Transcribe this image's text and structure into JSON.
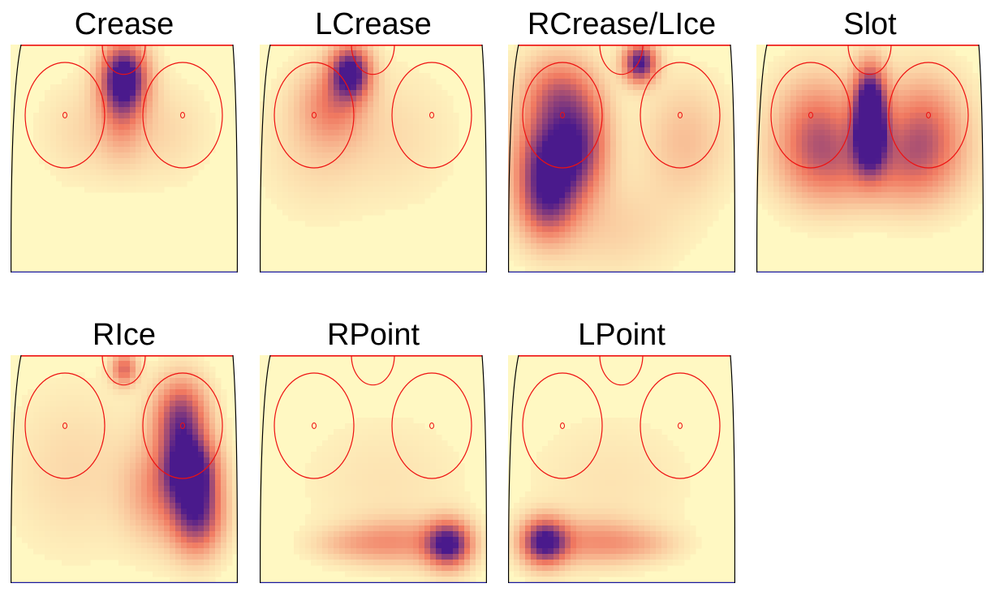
{
  "chart_data": {
    "type": "heatmap",
    "title": "",
    "xlabel": "",
    "ylabel": "",
    "colors": {
      "low": "#fff8c2",
      "mid": "#f07860",
      "high": "#4a1a8c",
      "rink_lines": "#ee1111",
      "boards": "#000000",
      "blue_line": "#1a1aa0",
      "goal_line": "#ee1111"
    },
    "panels": [
      {
        "title": "Crease",
        "hotspots": [
          {
            "x": 0.5,
            "y": 0.14,
            "sx": 0.07,
            "sy": 0.1,
            "intensity": 1.0
          },
          {
            "x": 0.49,
            "y": 0.28,
            "sx": 0.07,
            "sy": 0.14,
            "intensity": 0.35
          },
          {
            "x": 0.33,
            "y": 0.38,
            "sx": 0.14,
            "sy": 0.15,
            "intensity": 0.12
          },
          {
            "x": 0.67,
            "y": 0.38,
            "sx": 0.14,
            "sy": 0.15,
            "intensity": 0.12
          }
        ]
      },
      {
        "title": "LCrease",
        "hotspots": [
          {
            "x": 0.4,
            "y": 0.12,
            "sx": 0.06,
            "sy": 0.08,
            "intensity": 1.0
          },
          {
            "x": 0.32,
            "y": 0.26,
            "sx": 0.1,
            "sy": 0.12,
            "intensity": 0.4
          },
          {
            "x": 0.24,
            "y": 0.45,
            "sx": 0.16,
            "sy": 0.2,
            "intensity": 0.12
          },
          {
            "x": 0.6,
            "y": 0.4,
            "sx": 0.18,
            "sy": 0.2,
            "intensity": 0.1
          }
        ]
      },
      {
        "title": "RCrease/LIce",
        "hotspots": [
          {
            "x": 0.58,
            "y": 0.08,
            "sx": 0.05,
            "sy": 0.06,
            "intensity": 1.0
          },
          {
            "x": 0.2,
            "y": 0.5,
            "sx": 0.11,
            "sy": 0.14,
            "intensity": 0.95
          },
          {
            "x": 0.22,
            "y": 0.22,
            "sx": 0.11,
            "sy": 0.12,
            "intensity": 0.55
          },
          {
            "x": 0.17,
            "y": 0.7,
            "sx": 0.09,
            "sy": 0.12,
            "intensity": 0.6
          },
          {
            "x": 0.34,
            "y": 0.42,
            "sx": 0.08,
            "sy": 0.15,
            "intensity": 0.45
          },
          {
            "x": 0.78,
            "y": 0.42,
            "sx": 0.13,
            "sy": 0.18,
            "intensity": 0.22
          },
          {
            "x": 0.45,
            "y": 0.8,
            "sx": 0.2,
            "sy": 0.15,
            "intensity": 0.15
          }
        ]
      },
      {
        "title": "Slot",
        "hotspots": [
          {
            "x": 0.5,
            "y": 0.24,
            "sx": 0.05,
            "sy": 0.11,
            "intensity": 1.0
          },
          {
            "x": 0.5,
            "y": 0.42,
            "sx": 0.05,
            "sy": 0.1,
            "intensity": 0.9
          },
          {
            "x": 0.27,
            "y": 0.4,
            "sx": 0.13,
            "sy": 0.17,
            "intensity": 0.6
          },
          {
            "x": 0.73,
            "y": 0.4,
            "sx": 0.13,
            "sy": 0.17,
            "intensity": 0.6
          },
          {
            "x": 0.5,
            "y": 0.55,
            "sx": 0.22,
            "sy": 0.12,
            "intensity": 0.3
          }
        ]
      },
      {
        "title": "RIce",
        "hotspots": [
          {
            "x": 0.79,
            "y": 0.5,
            "sx": 0.08,
            "sy": 0.1,
            "intensity": 1.0
          },
          {
            "x": 0.75,
            "y": 0.28,
            "sx": 0.08,
            "sy": 0.12,
            "intensity": 0.8
          },
          {
            "x": 0.82,
            "y": 0.7,
            "sx": 0.08,
            "sy": 0.12,
            "intensity": 0.85
          },
          {
            "x": 0.5,
            "y": 0.06,
            "sx": 0.04,
            "sy": 0.05,
            "intensity": 0.55
          },
          {
            "x": 0.64,
            "y": 0.6,
            "sx": 0.1,
            "sy": 0.15,
            "intensity": 0.35
          },
          {
            "x": 0.28,
            "y": 0.5,
            "sx": 0.2,
            "sy": 0.25,
            "intensity": 0.12
          }
        ]
      },
      {
        "title": "RPoint",
        "hotspots": [
          {
            "x": 0.83,
            "y": 0.83,
            "sx": 0.07,
            "sy": 0.07,
            "intensity": 1.0
          },
          {
            "x": 0.6,
            "y": 0.82,
            "sx": 0.15,
            "sy": 0.07,
            "intensity": 0.35
          },
          {
            "x": 0.38,
            "y": 0.83,
            "sx": 0.12,
            "sy": 0.05,
            "intensity": 0.15
          },
          {
            "x": 0.55,
            "y": 0.55,
            "sx": 0.25,
            "sy": 0.2,
            "intensity": 0.08
          }
        ]
      },
      {
        "title": "LPoint",
        "hotspots": [
          {
            "x": 0.16,
            "y": 0.82,
            "sx": 0.07,
            "sy": 0.07,
            "intensity": 1.0
          },
          {
            "x": 0.38,
            "y": 0.82,
            "sx": 0.15,
            "sy": 0.07,
            "intensity": 0.35
          },
          {
            "x": 0.6,
            "y": 0.83,
            "sx": 0.12,
            "sy": 0.05,
            "intensity": 0.15
          },
          {
            "x": 0.45,
            "y": 0.55,
            "sx": 0.25,
            "sy": 0.2,
            "intensity": 0.08
          }
        ]
      }
    ]
  }
}
